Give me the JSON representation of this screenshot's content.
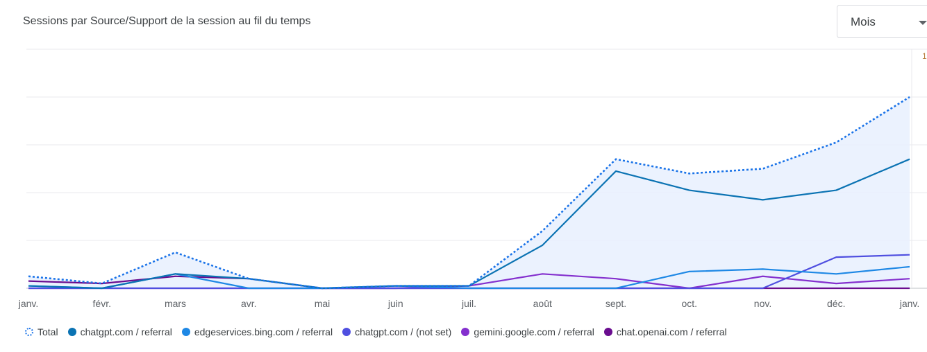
{
  "header": {
    "title": "Sessions par Source/Support de la session au fil du temps",
    "period_select": {
      "value": "Mois"
    },
    "corner_label": "1"
  },
  "chart_data": {
    "type": "line",
    "categories": [
      "janv.",
      "févr.",
      "mars",
      "avr.",
      "mai",
      "juin",
      "juil.",
      "août",
      "sept.",
      "oct.",
      "nov.",
      "déc.",
      "janv."
    ],
    "ylim": [
      0,
      50
    ],
    "grid": true,
    "legend_position": "bottom-left",
    "series": [
      {
        "name": "Total",
        "color": "#1a73e8",
        "style": "dotted",
        "area": true,
        "values": [
          2.5,
          1.0,
          7.5,
          2.0,
          0.0,
          0.5,
          0.5,
          12.0,
          27.0,
          24.0,
          25.0,
          30.5,
          40.0
        ]
      },
      {
        "name": "chatgpt.com / referral",
        "color": "#0b73b3",
        "style": "solid",
        "values": [
          0.5,
          0.0,
          3.0,
          2.0,
          0.0,
          0.5,
          0.5,
          9.0,
          24.5,
          20.5,
          18.5,
          20.5,
          27.0
        ]
      },
      {
        "name": "edgeservices.bing.com / referral",
        "color": "#1e88e5",
        "style": "solid",
        "values": [
          0.5,
          0.0,
          3.0,
          0.0,
          0.0,
          0.5,
          0.0,
          0.0,
          0.0,
          3.5,
          4.0,
          3.0,
          4.5
        ]
      },
      {
        "name": "chatgpt.com / (not set)",
        "color": "#4f4fe0",
        "style": "solid",
        "values": [
          0.0,
          0.0,
          0.0,
          0.0,
          0.0,
          0.0,
          0.0,
          0.0,
          0.0,
          0.0,
          0.0,
          6.5,
          7.0
        ]
      },
      {
        "name": "gemini.google.com / referral",
        "color": "#8430ce",
        "style": "solid",
        "values": [
          0.0,
          0.0,
          0.0,
          0.0,
          0.0,
          0.0,
          0.5,
          3.0,
          2.0,
          0.0,
          2.5,
          1.0,
          2.0
        ]
      },
      {
        "name": "chat.openai.com / referral",
        "color": "#6a0d8f",
        "style": "solid",
        "values": [
          1.5,
          1.0,
          2.5,
          2.0,
          0.0,
          0.0,
          0.0,
          0.0,
          0.0,
          0.0,
          0.0,
          0.0,
          0.0
        ]
      }
    ]
  }
}
